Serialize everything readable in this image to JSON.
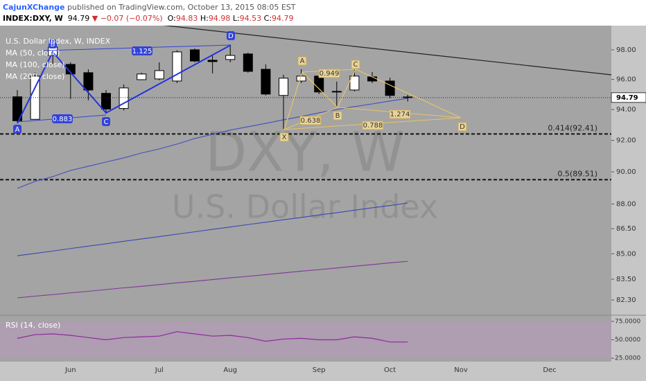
{
  "header": {
    "author": "CajunXChange",
    "published": "published on TradingView.com, October 13, 2015 08:05 EST",
    "symbol": "INDEX:DXY, W",
    "change": "−0.07 (−0.07%)",
    "o": "O:",
    "h": "H:",
    "l": "L:",
    "c": "C:"
  },
  "chart_data": [
    {
      "type": "candlestick",
      "title": "U.S. Dollar Index, W, INDEX",
      "watermark": "DXY, W",
      "watermark_subtitle": "U.S. Dollar Index",
      "categories": [
        null,
        null,
        null,
        "Jun",
        null,
        null,
        null,
        null,
        "Jul",
        null,
        null,
        null,
        "Aug",
        null,
        null,
        null,
        null,
        "Sep",
        null,
        null,
        null,
        "Oct",
        null,
        null,
        null,
        "Nov",
        null,
        null,
        null,
        null,
        "Dec",
        null,
        null,
        null
      ],
      "open": [
        94.84,
        93.36,
        97.62,
        97.01,
        96.45,
        95.07,
        94.07,
        95.98,
        96.03,
        95.89,
        98.0,
        97.29,
        97.34,
        97.72,
        96.68,
        94.93,
        95.89,
        96.22,
        95.16,
        95.29,
        96.17,
        95.89,
        94.83,
        null,
        null,
        null,
        null,
        null,
        null,
        null,
        null,
        null,
        null,
        null
      ],
      "high": [
        95.29,
        96.45,
        98.67,
        97.15,
        96.68,
        95.29,
        95.66,
        96.45,
        97.15,
        97.97,
        98.09,
        97.62,
        98.28,
        97.81,
        97.01,
        96.31,
        96.68,
        96.49,
        95.85,
        96.78,
        96.49,
        96.12,
        94.98,
        null,
        null,
        null,
        null,
        null,
        null,
        null,
        null,
        null,
        null,
        null
      ],
      "low": [
        93.14,
        93.36,
        97.01,
        94.7,
        94.61,
        93.72,
        93.94,
        95.98,
        95.94,
        95.75,
        97.15,
        96.4,
        97.15,
        96.45,
        94.93,
        92.74,
        95.75,
        95.02,
        94.16,
        95.2,
        95.75,
        94.75,
        94.53,
        null,
        null,
        null,
        null,
        null,
        null,
        null,
        null,
        null,
        null,
        null
      ],
      "close": [
        93.27,
        96.22,
        98.19,
        96.36,
        95.29,
        94.03,
        95.43,
        96.36,
        96.59,
        97.86,
        97.24,
        97.2,
        97.62,
        96.54,
        95.02,
        96.08,
        96.22,
        95.16,
        95.2,
        96.22,
        95.89,
        94.93,
        94.79,
        null,
        null,
        null,
        null,
        null,
        null,
        null,
        null,
        null,
        null,
        null
      ],
      "up_color": "#ffffff",
      "down_color": "#000000",
      "series": [
        {
          "name": "MA (50, close)",
          "color": "#3f4fbf",
          "values": [
            88.97,
            89.4,
            89.7,
            90.09,
            90.35,
            90.62,
            90.88,
            91.19,
            91.45,
            91.76,
            92.12,
            92.39,
            92.66,
            92.88,
            93.1,
            93.33,
            93.55,
            93.78,
            94.01,
            94.19,
            94.37,
            94.56,
            94.74,
            null,
            null,
            null,
            null,
            null,
            null,
            null,
            null,
            null,
            null,
            null
          ]
        },
        {
          "name": "MA (100, close)",
          "color": "#3a47b0",
          "values": [
            84.88,
            85.02,
            85.16,
            85.31,
            85.45,
            85.59,
            85.74,
            85.88,
            86.02,
            86.17,
            86.31,
            86.46,
            86.6,
            86.75,
            86.89,
            87.04,
            87.18,
            87.33,
            87.47,
            87.62,
            87.77,
            87.91,
            88.06,
            null,
            null,
            null,
            null,
            null,
            null,
            null,
            null,
            null,
            null,
            null
          ]
        },
        {
          "name": "MA (200, close)",
          "color": "#7d3596",
          "values": [
            82.42,
            82.52,
            82.61,
            82.71,
            82.8,
            82.9,
            83.0,
            83.09,
            83.19,
            83.29,
            83.38,
            83.48,
            83.58,
            83.67,
            83.77,
            83.87,
            83.97,
            84.06,
            84.16,
            84.26,
            84.36,
            84.46,
            84.55,
            null,
            null,
            null,
            null,
            null,
            null,
            null,
            null,
            null,
            null,
            null
          ]
        }
      ],
      "ylim": [
        81.43,
        99.67
      ],
      "log_scale": true,
      "grid": false,
      "yticks": [
        {
          "value": 98,
          "label": "98.00"
        },
        {
          "value": 96,
          "label": "96.00"
        },
        {
          "value": 94,
          "label": "94.00"
        },
        {
          "value": 92,
          "label": "92.00"
        },
        {
          "value": 90,
          "label": "90.00"
        },
        {
          "value": 88,
          "label": "88.00"
        },
        {
          "value": 86.5,
          "label": "86.50"
        },
        {
          "value": 85,
          "label": "85.00"
        },
        {
          "value": 83.5,
          "label": "83.50"
        },
        {
          "value": 82.3,
          "label": "82.30"
        }
      ],
      "fib_levels": [
        {
          "value": 92.41,
          "label": "0.414(92.41)"
        },
        {
          "value": 89.51,
          "label": "0.5(89.51)"
        }
      ],
      "patterns": [
        {
          "points": [
            "A",
            "B",
            "C",
            "D"
          ],
          "ratios": [
            "1.125",
            "0.883"
          ]
        },
        {
          "points": [
            "X",
            "A",
            "B",
            "C",
            "D"
          ],
          "ratios": [
            "0.949",
            "0.638",
            "0.788",
            "1.274"
          ]
        }
      ]
    },
    {
      "type": "line",
      "title": "RSI (14, close)",
      "color": "#8e2a9a",
      "values": [
        52,
        57,
        58,
        56,
        53,
        50,
        53,
        54,
        55,
        61,
        58,
        55,
        56,
        53,
        48,
        51,
        52,
        50,
        50,
        54,
        52,
        47,
        47,
        null,
        null,
        null,
        null,
        null,
        null,
        null,
        null,
        null,
        null,
        null
      ],
      "ylim": [
        20.4,
        81.5
      ],
      "yticks": [
        {
          "value": 75,
          "label": "75.0000"
        },
        {
          "value": 50,
          "label": "50.0000"
        },
        {
          "value": 25,
          "label": "25.0000"
        }
      ]
    }
  ]
}
